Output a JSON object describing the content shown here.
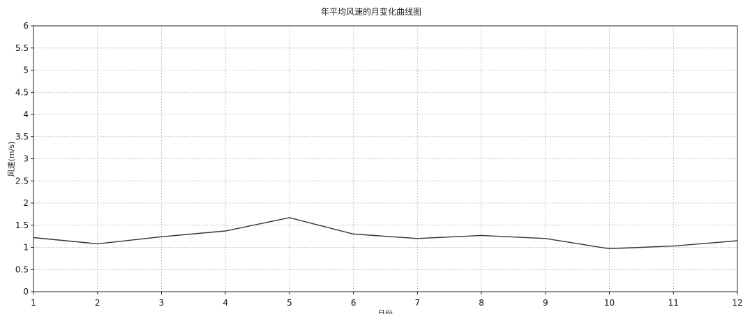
{
  "chart_data": {
    "type": "line",
    "title": "年平均风速的月变化曲线图",
    "xlabel": "月份",
    "ylabel": "风速(m/s)",
    "x": [
      1,
      2,
      3,
      4,
      5,
      6,
      7,
      8,
      9,
      10,
      11,
      12
    ],
    "x_ticks": [
      "1",
      "2",
      "3",
      "4",
      "5",
      "6",
      "7",
      "8",
      "9",
      "10",
      "11",
      "12"
    ],
    "y_ticks": [
      "0",
      "0.5",
      "1",
      "1.5",
      "2",
      "2.5",
      "3",
      "3.5",
      "4",
      "4.5",
      "5",
      "5.5",
      "6"
    ],
    "series": [
      {
        "values": [
          1.22,
          1.08,
          1.24,
          1.37,
          1.67,
          1.3,
          1.2,
          1.27,
          1.2,
          0.97,
          1.03,
          1.15
        ],
        "color": "#333333"
      }
    ],
    "xlim": [
      1,
      12
    ],
    "ylim": [
      0,
      6
    ],
    "grid": true,
    "legend": "none"
  }
}
